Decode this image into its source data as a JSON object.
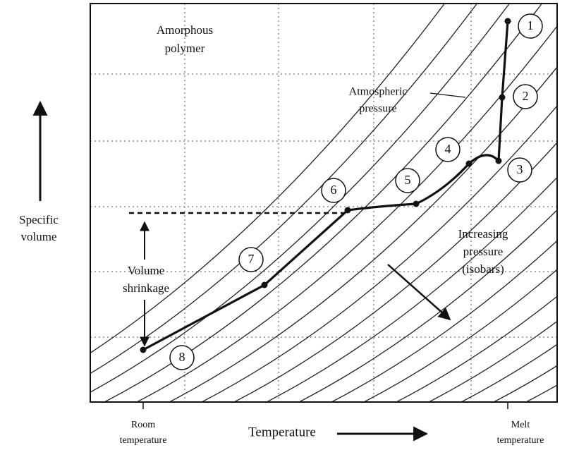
{
  "labels": {
    "amorphous": [
      "Amorphous",
      "polymer"
    ],
    "atmospheric": [
      "Atmospheric",
      "pressure"
    ],
    "y_axis": [
      "Specific",
      "volume"
    ],
    "shrinkage": [
      "Volume",
      "shrinkage"
    ],
    "increasing": [
      "Increasing",
      "pressure",
      "(isobars)"
    ],
    "room": [
      "Room",
      "temperature"
    ],
    "x_axis": "Temperature",
    "melt": [
      "Melt",
      "temperature"
    ]
  },
  "points": [
    "1",
    "2",
    "3",
    "4",
    "5",
    "6",
    "7",
    "8"
  ]
}
